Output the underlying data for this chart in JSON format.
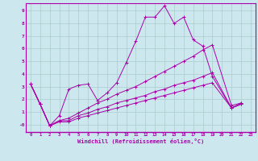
{
  "title": "",
  "xlabel": "Windchill (Refroidissement éolien,°C)",
  "bg_color": "#cce8ee",
  "grid_color": "#aacccc",
  "line_color": "#aa00aa",
  "xlim": [
    -0.5,
    23.5
  ],
  "ylim": [
    -0.6,
    9.6
  ],
  "xticks": [
    0,
    1,
    2,
    3,
    4,
    5,
    6,
    7,
    8,
    9,
    10,
    11,
    12,
    13,
    14,
    15,
    16,
    17,
    18,
    19,
    20,
    21,
    22,
    23
  ],
  "yticks": [
    0,
    1,
    2,
    3,
    4,
    5,
    6,
    7,
    8,
    9
  ],
  "ytick_labels": [
    "-0",
    "1",
    "2",
    "3",
    "4",
    "5",
    "6",
    "7",
    "8",
    "9"
  ],
  "series": [
    {
      "x": [
        0,
        1,
        2,
        3,
        4,
        5,
        6,
        7,
        8,
        9,
        10,
        11,
        12,
        13,
        14,
        15,
        16,
        17,
        18,
        19,
        21,
        22
      ],
      "y": [
        3.2,
        1.6,
        -0.1,
        0.7,
        2.8,
        3.1,
        3.2,
        1.9,
        2.5,
        3.3,
        4.9,
        6.6,
        8.5,
        8.5,
        9.4,
        8.0,
        8.5,
        6.7,
        6.2,
        3.8,
        1.3,
        1.7
      ]
    },
    {
      "x": [
        0,
        1,
        2,
        3,
        4,
        5,
        6,
        7,
        8,
        9,
        10,
        11,
        12,
        13,
        14,
        15,
        16,
        17,
        18,
        19,
        21,
        22
      ],
      "y": [
        3.2,
        1.6,
        -0.1,
        0.3,
        0.5,
        0.9,
        1.3,
        1.7,
        2.0,
        2.4,
        2.7,
        3.0,
        3.4,
        3.8,
        4.2,
        4.6,
        5.0,
        5.4,
        5.9,
        6.3,
        1.5,
        1.7
      ]
    },
    {
      "x": [
        0,
        1,
        2,
        3,
        4,
        5,
        6,
        7,
        8,
        9,
        10,
        11,
        12,
        13,
        14,
        15,
        16,
        17,
        18,
        19,
        21,
        22
      ],
      "y": [
        3.2,
        1.6,
        -0.1,
        0.3,
        0.3,
        0.7,
        0.9,
        1.2,
        1.4,
        1.7,
        1.9,
        2.1,
        2.3,
        2.6,
        2.8,
        3.1,
        3.3,
        3.5,
        3.8,
        4.1,
        1.3,
        1.6
      ]
    },
    {
      "x": [
        0,
        1,
        2,
        3,
        4,
        5,
        6,
        7,
        8,
        9,
        10,
        11,
        12,
        13,
        14,
        15,
        16,
        17,
        18,
        19,
        21,
        22
      ],
      "y": [
        3.2,
        1.6,
        -0.1,
        0.2,
        0.2,
        0.5,
        0.7,
        0.9,
        1.1,
        1.3,
        1.5,
        1.7,
        1.9,
        2.1,
        2.3,
        2.5,
        2.7,
        2.9,
        3.1,
        3.3,
        1.3,
        1.6
      ]
    }
  ]
}
